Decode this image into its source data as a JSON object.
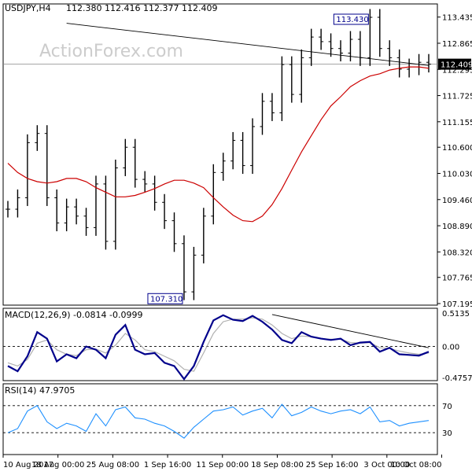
{
  "header": {
    "symbol": "USDJPY,H4",
    "ohlc": "112.380 112.416 112.377 112.409"
  },
  "watermark": "ActionForex.com",
  "colors": {
    "candle": "#000000",
    "ma": "#cc0000",
    "trendline": "#000000",
    "macd_line": "#00008b",
    "macd_signal": "#b0b0b0",
    "rsi_line": "#1e90ff",
    "label_box": "#00008b",
    "current_price_bg": "#000000"
  },
  "chart_data": [
    {
      "type": "candlestick",
      "title": "USDJPY,H4",
      "ylim": [
        107.195,
        113.43
      ],
      "y_ticks": [
        "113.435",
        "112.865",
        "112.295",
        "111.725",
        "111.155",
        "110.600",
        "110.030",
        "109.460",
        "108.890",
        "108.320",
        "107.765",
        "107.195"
      ],
      "x_ticks": [
        "10 Aug 2017",
        "18 Aug 00:00",
        "25 Aug 08:00",
        "1 Sep 16:00",
        "11 Sep 00:00",
        "18 Sep 08:00",
        "25 Sep 16:00",
        "3 Oct 00:00",
        "10 Oct 08:00"
      ],
      "series": [
        {
          "name": "moving-average",
          "values": [
            110.25,
            110.05,
            109.92,
            109.85,
            109.82,
            109.85,
            109.92,
            109.92,
            109.85,
            109.72,
            109.62,
            109.52,
            109.52,
            109.55,
            109.62,
            109.7,
            109.8,
            109.88,
            109.88,
            109.82,
            109.72,
            109.5,
            109.3,
            109.12,
            109.0,
            108.98,
            109.1,
            109.35,
            109.7,
            110.1,
            110.5,
            110.85,
            111.2,
            111.5,
            111.7,
            111.92,
            112.05,
            112.15,
            112.2,
            112.28,
            112.32,
            112.35,
            112.35,
            112.32
          ]
        },
        {
          "name": "price",
          "values": [
            109.25,
            109.5,
            110.7,
            110.9,
            109.5,
            108.95,
            109.3,
            109.1,
            108.85,
            109.8,
            108.55,
            110.15,
            110.6,
            109.9,
            109.8,
            109.4,
            109.0,
            108.5,
            107.45,
            108.25,
            109.1,
            110.05,
            110.3,
            110.75,
            110.2,
            111.05,
            111.6,
            111.35,
            112.4,
            111.75,
            112.55,
            113.0,
            112.9,
            112.75,
            112.65,
            112.95,
            112.55,
            113.43,
            112.75,
            112.55,
            112.3,
            112.35,
            112.45,
            112.409
          ]
        }
      ],
      "annotations": [
        {
          "label": "113.430",
          "x_index": 37,
          "y": 113.43
        },
        {
          "label": "107.310",
          "x_index": 18,
          "y": 107.31
        }
      ],
      "current_price": "112.409",
      "trendline": {
        "from": {
          "x_index": 6,
          "y": 113.3
        },
        "to": {
          "x_index": 43,
          "y": 112.38
        }
      }
    },
    {
      "type": "line",
      "title": "MACD(12,26,9) -0.0814 -0.0999",
      "ylim": [
        -0.4757,
        0.5135
      ],
      "y_ticks": [
        "0.5135",
        "0.00",
        "-0.4757"
      ],
      "series": [
        {
          "name": "macd",
          "values": [
            -0.3,
            -0.38,
            -0.15,
            0.22,
            0.12,
            -0.23,
            -0.12,
            -0.18,
            0.0,
            -0.05,
            -0.18,
            0.18,
            0.33,
            -0.05,
            -0.12,
            -0.1,
            -0.25,
            -0.3,
            -0.5,
            -0.3,
            0.07,
            0.4,
            0.48,
            0.41,
            0.39,
            0.47,
            0.38,
            0.26,
            0.1,
            0.05,
            0.22,
            0.15,
            0.12,
            0.1,
            0.12,
            0.02,
            0.06,
            0.07,
            -0.08,
            -0.02,
            -0.12,
            -0.13,
            -0.14,
            -0.0814
          ]
        },
        {
          "name": "signal",
          "values": [
            -0.25,
            -0.3,
            -0.2,
            0.05,
            0.1,
            -0.05,
            -0.12,
            -0.14,
            -0.05,
            -0.04,
            -0.1,
            0.02,
            0.2,
            0.1,
            -0.05,
            -0.08,
            -0.15,
            -0.22,
            -0.35,
            -0.38,
            -0.1,
            0.2,
            0.38,
            0.42,
            0.42,
            0.44,
            0.42,
            0.33,
            0.2,
            0.12,
            0.16,
            0.15,
            0.12,
            0.11,
            0.11,
            0.06,
            0.05,
            0.06,
            -0.02,
            -0.03,
            -0.07,
            -0.1,
            -0.12,
            -0.0999
          ]
        }
      ],
      "trendline": {
        "from": {
          "x_index": 27,
          "y": 0.49
        },
        "to": {
          "x_index": 43,
          "y": -0.02
        }
      }
    },
    {
      "type": "line",
      "title": "RSI(14) 47.9705",
      "ylim": [
        0,
        100
      ],
      "y_ticks": [
        "70",
        "30"
      ],
      "series": [
        {
          "name": "rsi",
          "values": [
            30,
            36,
            62,
            70,
            46,
            36,
            44,
            40,
            32,
            58,
            40,
            64,
            68,
            52,
            50,
            44,
            40,
            32,
            22,
            38,
            50,
            62,
            64,
            68,
            56,
            62,
            66,
            52,
            72,
            55,
            60,
            68,
            62,
            58,
            62,
            64,
            58,
            68,
            46,
            48,
            40,
            44,
            46,
            47.9705
          ]
        }
      ]
    }
  ]
}
